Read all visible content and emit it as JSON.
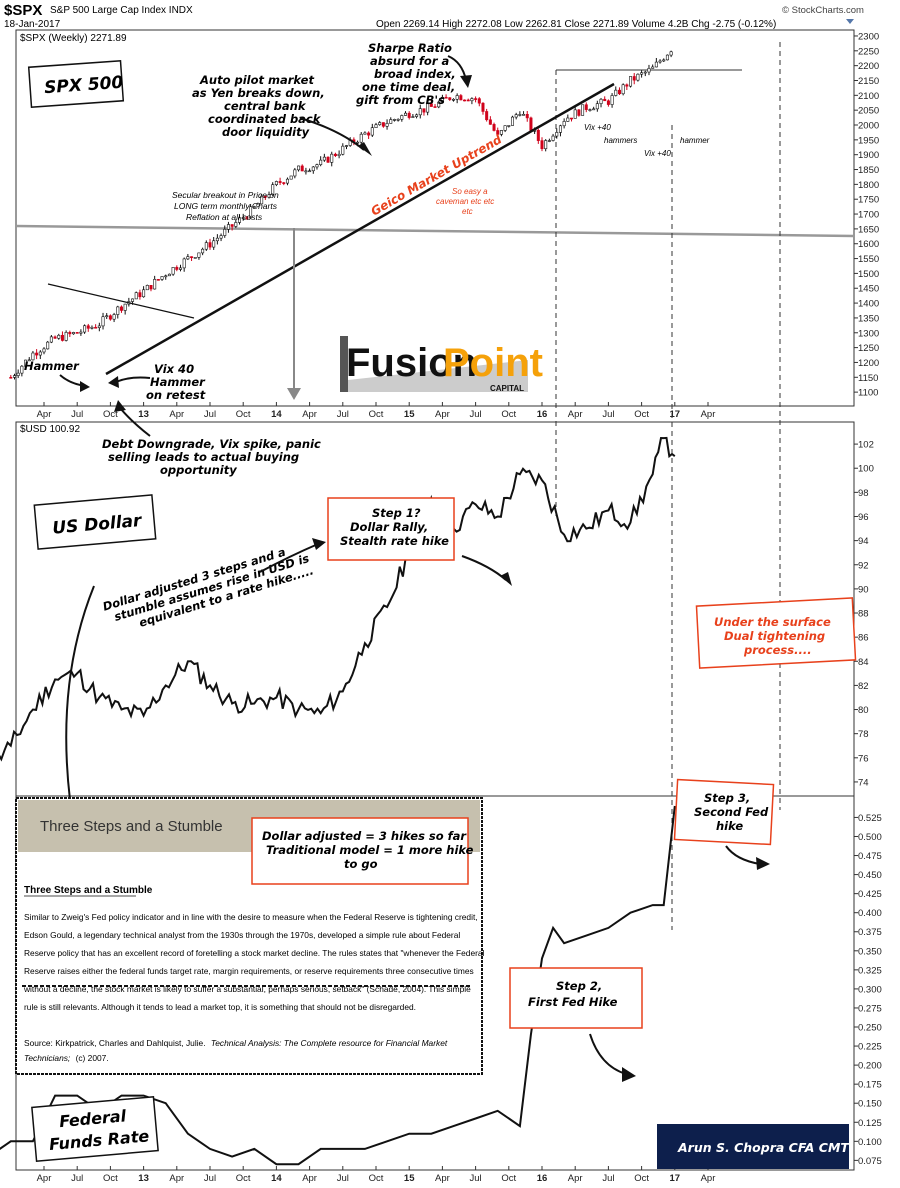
{
  "header": {
    "symbol": "$SPX",
    "name": "S&P 500 Large Cap Index INDX",
    "date": "18-Jan-2017",
    "quote": "Open 2269.14  High 2272.08  Low 2262.81  Close 2271.89  Volume 4.2B  Chg -2.75 (-0.12%)",
    "copyright": "© StockCharts.com"
  },
  "colors": {
    "up": "#111111",
    "down": "#d0021b",
    "annotation_red": "#e8411c",
    "box_border": "#e8411c",
    "credit_bg": "#0d1f4c"
  },
  "chart_data": [
    {
      "type": "candlestick",
      "legend": "$SPX (Weekly) 2271.89",
      "yticks": [
        1100,
        1150,
        1200,
        1250,
        1300,
        1350,
        1400,
        1450,
        1500,
        1550,
        1600,
        1650,
        1700,
        1750,
        1800,
        1850,
        1900,
        1950,
        2000,
        2050,
        2100,
        2150,
        2200,
        2250,
        2300
      ],
      "ylim": [
        1060,
        2310
      ],
      "xticks": [
        "Apr",
        "Jul",
        "Oct",
        "13",
        "Apr",
        "Jul",
        "Oct",
        "14",
        "Apr",
        "Jul",
        "Oct",
        "15",
        "Apr",
        "Jul",
        "Oct",
        "16",
        "Apr",
        "Jul",
        "Oct",
        "17",
        "Apr"
      ],
      "x": [
        "2012-01",
        "2012-03",
        "2012-05",
        "2012-07",
        "2012-09",
        "2012-11",
        "2013-01",
        "2013-03",
        "2013-05",
        "2013-07",
        "2013-09",
        "2013-11",
        "2014-01",
        "2014-03",
        "2014-05",
        "2014-07",
        "2014-09",
        "2014-11",
        "2015-01",
        "2015-03",
        "2015-05",
        "2015-07",
        "2015-09",
        "2015-11",
        "2016-01",
        "2016-03",
        "2016-05",
        "2016-07",
        "2016-09",
        "2016-11",
        "2017-01"
      ],
      "y": [
        1150,
        1230,
        1280,
        1300,
        1330,
        1390,
        1440,
        1500,
        1550,
        1600,
        1660,
        1720,
        1800,
        1850,
        1870,
        1920,
        1970,
        2010,
        2040,
        2060,
        2100,
        2090,
        1960,
        2050,
        1930,
        2020,
        2060,
        2080,
        2150,
        2190,
        2270
      ]
    },
    {
      "type": "line",
      "legend": "$USD 100.92",
      "yticks": [
        74,
        76,
        78,
        80,
        82,
        84,
        86,
        88,
        90,
        92,
        94,
        96,
        98,
        100,
        102
      ],
      "ylim": [
        73,
        103.5
      ],
      "x": [
        "2011-09",
        "2011-11",
        "2012-01",
        "2012-03",
        "2012-05",
        "2012-07",
        "2012-09",
        "2012-11",
        "2013-01",
        "2013-03",
        "2013-05",
        "2013-07",
        "2013-09",
        "2013-11",
        "2014-01",
        "2014-03",
        "2014-05",
        "2014-07",
        "2014-09",
        "2014-11",
        "2015-01",
        "2015-03",
        "2015-05",
        "2015-07",
        "2015-09",
        "2015-11",
        "2016-01",
        "2016-03",
        "2016-05",
        "2016-07",
        "2016-09",
        "2016-11",
        "2016-12",
        "2017-01"
      ],
      "y": [
        78.5,
        75,
        77,
        80,
        82.5,
        83,
        81,
        80,
        79.5,
        82,
        84,
        82,
        80.5,
        80.5,
        81,
        80,
        79.7,
        81.5,
        85.5,
        88.5,
        93,
        97.5,
        95,
        97,
        96,
        99.5,
        99,
        94.5,
        95,
        96.5,
        95.5,
        99.5,
        102.5,
        101
      ]
    },
    {
      "type": "line",
      "legend": "Federal Funds Rate",
      "yticks": [
        0.075,
        0.1,
        0.125,
        0.15,
        0.175,
        0.2,
        0.225,
        0.25,
        0.275,
        0.3,
        0.325,
        0.35,
        0.375,
        0.4,
        0.425,
        0.45,
        0.475,
        0.5,
        0.525
      ],
      "ylim": [
        0.065,
        0.54
      ],
      "x": [
        "2011-09",
        "2011-11",
        "2012-01",
        "2012-03",
        "2012-05",
        "2012-07",
        "2012-09",
        "2012-11",
        "2013-01",
        "2013-03",
        "2013-05",
        "2013-07",
        "2013-09",
        "2013-11",
        "2014-01",
        "2014-03",
        "2014-05",
        "2014-07",
        "2014-09",
        "2014-11",
        "2015-01",
        "2015-03",
        "2015-05",
        "2015-07",
        "2015-09",
        "2015-11",
        "2015-12",
        "2016-01",
        "2016-02",
        "2016-03",
        "2016-05",
        "2016-07",
        "2016-09",
        "2016-11",
        "2016-12",
        "2017-01"
      ],
      "y": [
        0.15,
        0.08,
        0.1,
        0.1,
        0.16,
        0.16,
        0.14,
        0.16,
        0.16,
        0.15,
        0.11,
        0.09,
        0.08,
        0.09,
        0.07,
        0.07,
        0.09,
        0.09,
        0.09,
        0.1,
        0.11,
        0.11,
        0.12,
        0.13,
        0.14,
        0.12,
        0.24,
        0.34,
        0.38,
        0.36,
        0.37,
        0.38,
        0.4,
        0.41,
        0.41,
        0.54
      ]
    }
  ],
  "annotations": {
    "spx_title": "SPX 500",
    "usd_title": "US Dollar",
    "fed_title_1": "Federal",
    "fed_title_2": "Funds Rate",
    "hammer": "Hammer",
    "vix40_1": "Vix 40",
    "vix40_2": "Hammer",
    "vix40_3": "on retest",
    "debt_1": "Debt Downgrade, Vix spike, panic",
    "debt_2": "selling leads to actual buying",
    "debt_3": "opportunity",
    "auto_1": "Auto pilot market",
    "auto_2": "as Yen breaks down,",
    "auto_3": "central bank",
    "auto_4": "coordinated back",
    "auto_5": "door liquidity",
    "sharpe_1": "Sharpe Ratio",
    "sharpe_2": "absurd for a",
    "sharpe_3": "broad index,",
    "sharpe_4": "one time deal,",
    "sharpe_5": "gift from CB's",
    "secular_1": "Secular breakout in Price on",
    "secular_2": "LONG term monthly Charts",
    "secular_3": "Reflation at all costs",
    "geico": "Geico Market Uptrend",
    "caveman_1": "So easy a",
    "caveman_2": "caveman etc etc",
    "caveman_3": "etc",
    "vix40a": "Vix +40",
    "hammers": "hammers",
    "vix40b": "Vix +40",
    "hammer2": "hammer",
    "dollar_adj_1": "Dollar adjusted 3 steps and a",
    "dollar_adj_2": "stumble assumes rise in USD is",
    "dollar_adj_3": "equivalent to a rate hike.....",
    "step1_1": "Step 1?",
    "step1_2": "Dollar Rally,",
    "step1_3": "Stealth rate hike",
    "under_1": "Under the surface",
    "under_2": "Dual tightening",
    "under_3": "process....",
    "step2_1": "Step 2,",
    "step2_2": "First Fed Hike",
    "step3_1": "Step 3,",
    "step3_2": "Second Fed",
    "step3_3": "hike",
    "hikes_1": "Dollar adjusted = 3 hikes so far",
    "hikes_2": "Traditional model = 1 more hike",
    "hikes_3": "to go",
    "logo_1": "Fusion",
    "logo_2": "Point",
    "logo_3": "CAPITAL",
    "credit": "Arun S. Chopra CFA CMT"
  },
  "textbox": {
    "tab": "Three Steps and a Stumble",
    "heading": "Three Steps and a Stumble",
    "lines": [
      "Similar to Zweig's Fed policy indicator and in line with the desire to measure when the Federal Reserve is tightening credit,",
      "Edson Gould, a legendary technical analyst from the 1930s through the 1970s, developed a simple rule about Federal",
      "Reserve policy that has an excellent record of foretelling a stock market decline. The rules states that \"whenever the Federal",
      "Reserve raises either the federal funds target rate, margin requirements, or reserve requirements three consecutive times",
      "without a decline, the stock market is likely to suffer a substantial, perhaps serious, setback\" (Schade, 2004). This simple",
      "rule is still relevants. Although it tends to lead a market top, it is something that should not be disregarded."
    ],
    "source_1": "Source: Kirkpatrick, Charles and Dahlquist, Julie.",
    "source_title": "Technical Analysis: The Complete resource for Financial Market",
    "source_2": "Technicians;",
    "source_3": "(c) 2007."
  }
}
